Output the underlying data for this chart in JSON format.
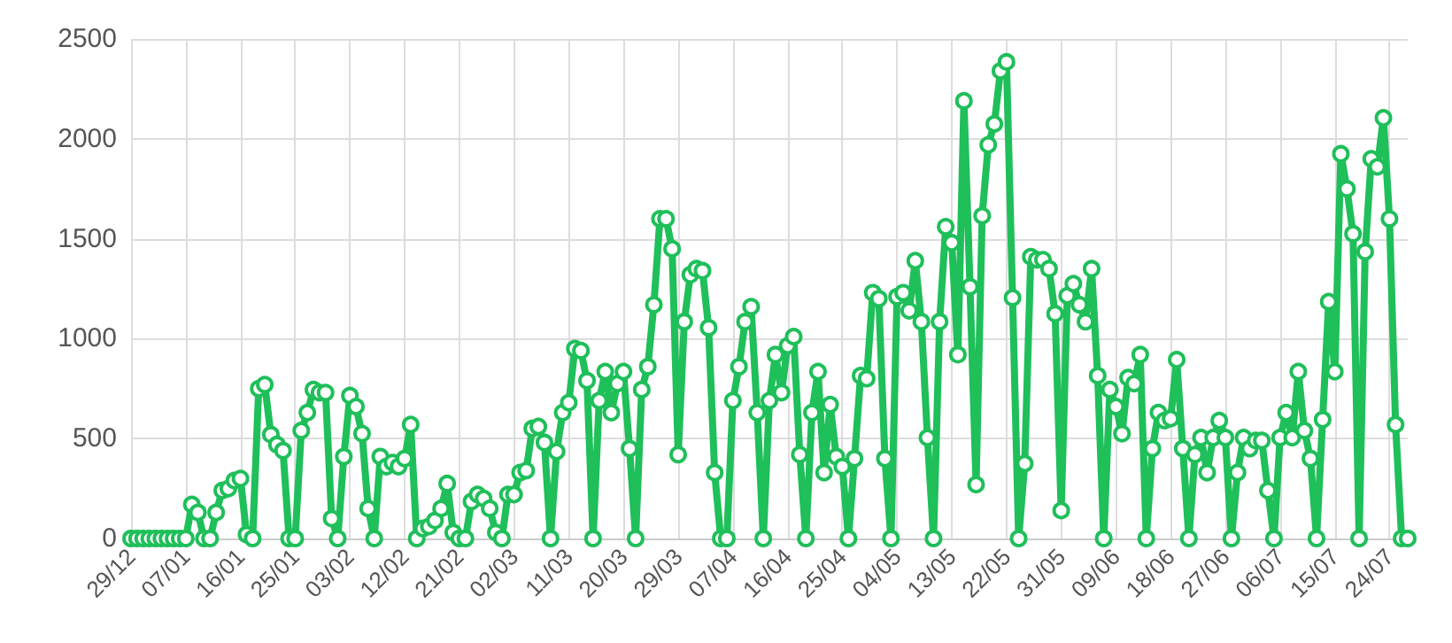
{
  "chart_data": {
    "type": "line",
    "categories": [
      "29/12",
      null,
      null,
      null,
      null,
      null,
      null,
      null,
      null,
      "07/01",
      null,
      null,
      null,
      null,
      null,
      null,
      null,
      null,
      "16/01",
      null,
      null,
      null,
      null,
      null,
      null,
      null,
      null,
      "25/01",
      null,
      null,
      null,
      null,
      null,
      null,
      null,
      null,
      "03/02",
      null,
      null,
      null,
      null,
      null,
      null,
      null,
      null,
      "12/02",
      null,
      null,
      null,
      null,
      null,
      null,
      null,
      null,
      "21/02",
      null,
      null,
      null,
      null,
      null,
      null,
      null,
      null,
      "02/03",
      null,
      null,
      null,
      null,
      null,
      null,
      null,
      null,
      "11/03",
      null,
      null,
      null,
      null,
      null,
      null,
      null,
      null,
      "20/03",
      null,
      null,
      null,
      null,
      null,
      null,
      null,
      null,
      "29/03",
      null,
      null,
      null,
      null,
      null,
      null,
      null,
      null,
      "07/04",
      null,
      null,
      null,
      null,
      null,
      null,
      null,
      null,
      "16/04",
      null,
      null,
      null,
      null,
      null,
      null,
      null,
      null,
      "25/04",
      null,
      null,
      null,
      null,
      null,
      null,
      null,
      null,
      "04/05",
      null,
      null,
      null,
      null,
      null,
      null,
      null,
      null,
      "13/05",
      null,
      null,
      null,
      null,
      null,
      null,
      null,
      null,
      "22/05",
      null,
      null,
      null,
      null,
      null,
      null,
      null,
      null,
      "31/05",
      null,
      null,
      null,
      null,
      null,
      null,
      null,
      null,
      "09/06",
      null,
      null,
      null,
      null,
      null,
      null,
      null,
      null,
      "18/06",
      null,
      null,
      null,
      null,
      null,
      null,
      null,
      null,
      "27/06",
      null,
      null,
      null,
      null,
      null,
      null,
      null,
      null,
      "06/07",
      null,
      null,
      null,
      null,
      null,
      null,
      null,
      null,
      "15/07",
      null,
      null,
      null,
      null,
      null,
      null,
      null,
      null,
      "24/07",
      null,
      null,
      null
    ],
    "series": [
      {
        "color": "#1fbf5a",
        "values": [
          0,
          0,
          0,
          0,
          0,
          0,
          0,
          0,
          0,
          0,
          170,
          130,
          0,
          0,
          130,
          240,
          250,
          290,
          300,
          20,
          0,
          750,
          770,
          520,
          470,
          440,
          0,
          0,
          540,
          630,
          745,
          730,
          730,
          100,
          0,
          410,
          715,
          660,
          525,
          150,
          0,
          410,
          360,
          380,
          360,
          400,
          570,
          0,
          50,
          60,
          90,
          150,
          275,
          30,
          0,
          0,
          185,
          220,
          200,
          150,
          30,
          0,
          220,
          220,
          330,
          340,
          550,
          560,
          480,
          0,
          435,
          630,
          680,
          950,
          940,
          790,
          0,
          690,
          835,
          630,
          775,
          835,
          450,
          0,
          745,
          860,
          1170,
          1600,
          1600,
          1450,
          420,
          1085,
          1320,
          1350,
          1340,
          1055,
          330,
          0,
          0,
          690,
          860,
          1085,
          1160,
          630,
          0,
          690,
          920,
          730,
          965,
          1010,
          420,
          0,
          630,
          835,
          330,
          670,
          410,
          360,
          0,
          400,
          815,
          800,
          1230,
          1200,
          400,
          0,
          1210,
          1230,
          1140,
          1390,
          1085,
          505,
          0,
          1085,
          1560,
          1480,
          920,
          2190,
          1260,
          270,
          1615,
          1970,
          2075,
          2340,
          2385,
          1205,
          0,
          375,
          1410,
          1395,
          1395,
          1350,
          1125,
          140,
          1215,
          1275,
          1170,
          1085,
          1350,
          815,
          0,
          745,
          660,
          525,
          805,
          775,
          920,
          0,
          450,
          630,
          590,
          600,
          895,
          450,
          0,
          420,
          505,
          330,
          505,
          590,
          505,
          0,
          330,
          505,
          450,
          490,
          490,
          240,
          0,
          505,
          630,
          505,
          835,
          540,
          400,
          0,
          595,
          1185,
          835,
          1925,
          1750,
          1525,
          0,
          1435,
          1900,
          1860,
          2105,
          1600,
          570,
          0,
          0
        ]
      }
    ],
    "ylim": [
      0,
      2500
    ],
    "yticks": [
      0,
      500,
      1000,
      1500,
      2000,
      2500
    ],
    "grid": true,
    "marker": "circle",
    "line_style": "solid"
  }
}
